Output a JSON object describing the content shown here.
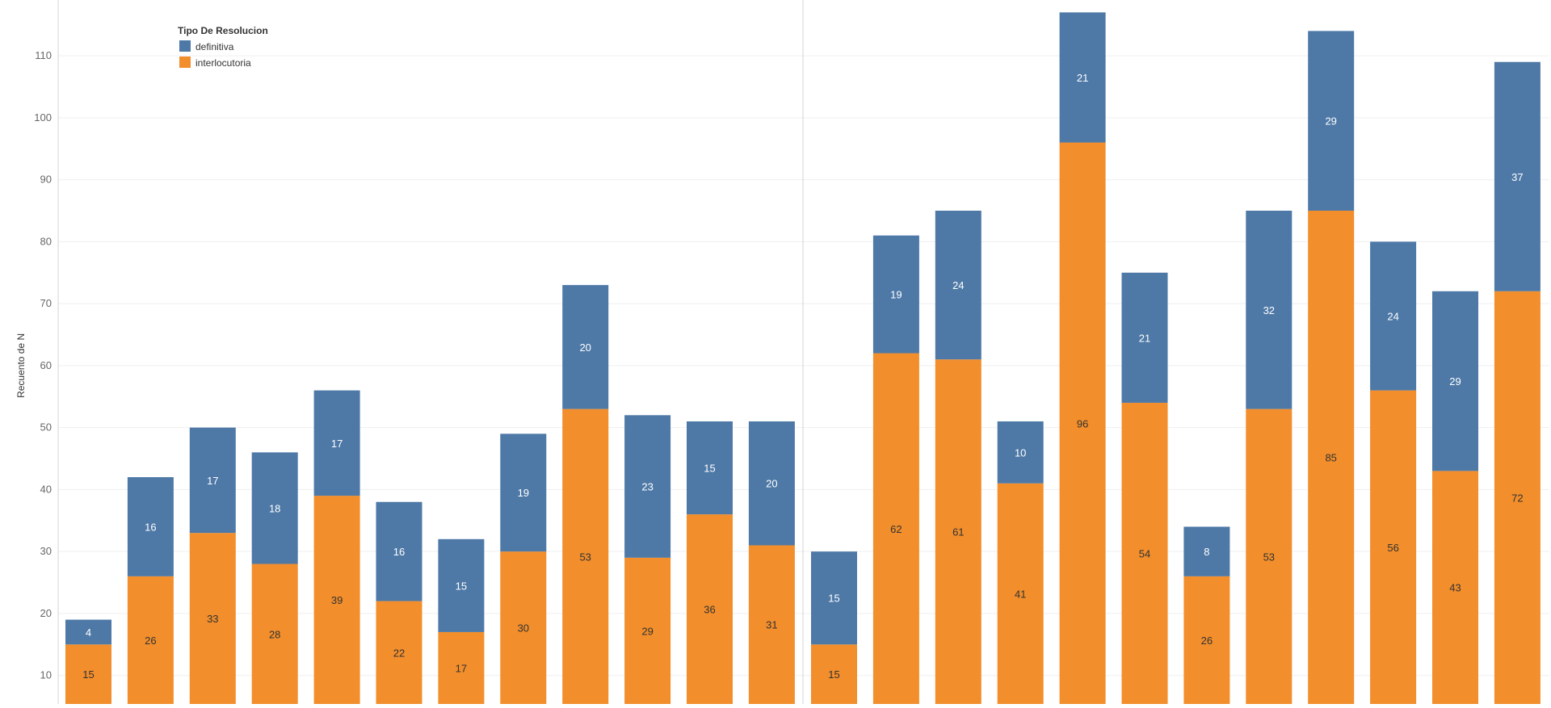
{
  "chart_data": {
    "type": "bar",
    "stacked": true,
    "xlabel": "",
    "ylabel": "Recuento de N",
    "y_ticks": [
      10,
      20,
      30,
      40,
      50,
      60,
      70,
      80,
      90,
      100,
      110
    ],
    "ylim": [
      5.4,
      119
    ],
    "grid": true,
    "legend": {
      "title": "Tipo De Resolucion",
      "position": "top-left",
      "entries": [
        {
          "name": "definitiva",
          "color": "#4e79a7"
        },
        {
          "name": "interlocutoria",
          "color": "#f28e2b"
        }
      ]
    },
    "panels": 2,
    "series": [
      {
        "name": "interlocutoria",
        "color": "#f28e2b",
        "values": [
          15,
          26,
          33,
          28,
          39,
          22,
          17,
          30,
          53,
          29,
          36,
          31,
          15,
          62,
          61,
          41,
          96,
          54,
          26,
          53,
          85,
          56,
          43,
          72
        ]
      },
      {
        "name": "definitiva",
        "color": "#4e79a7",
        "values": [
          4,
          16,
          17,
          18,
          17,
          16,
          15,
          19,
          20,
          23,
          15,
          20,
          15,
          19,
          24,
          10,
          21,
          21,
          8,
          32,
          29,
          24,
          29,
          37
        ]
      }
    ]
  }
}
